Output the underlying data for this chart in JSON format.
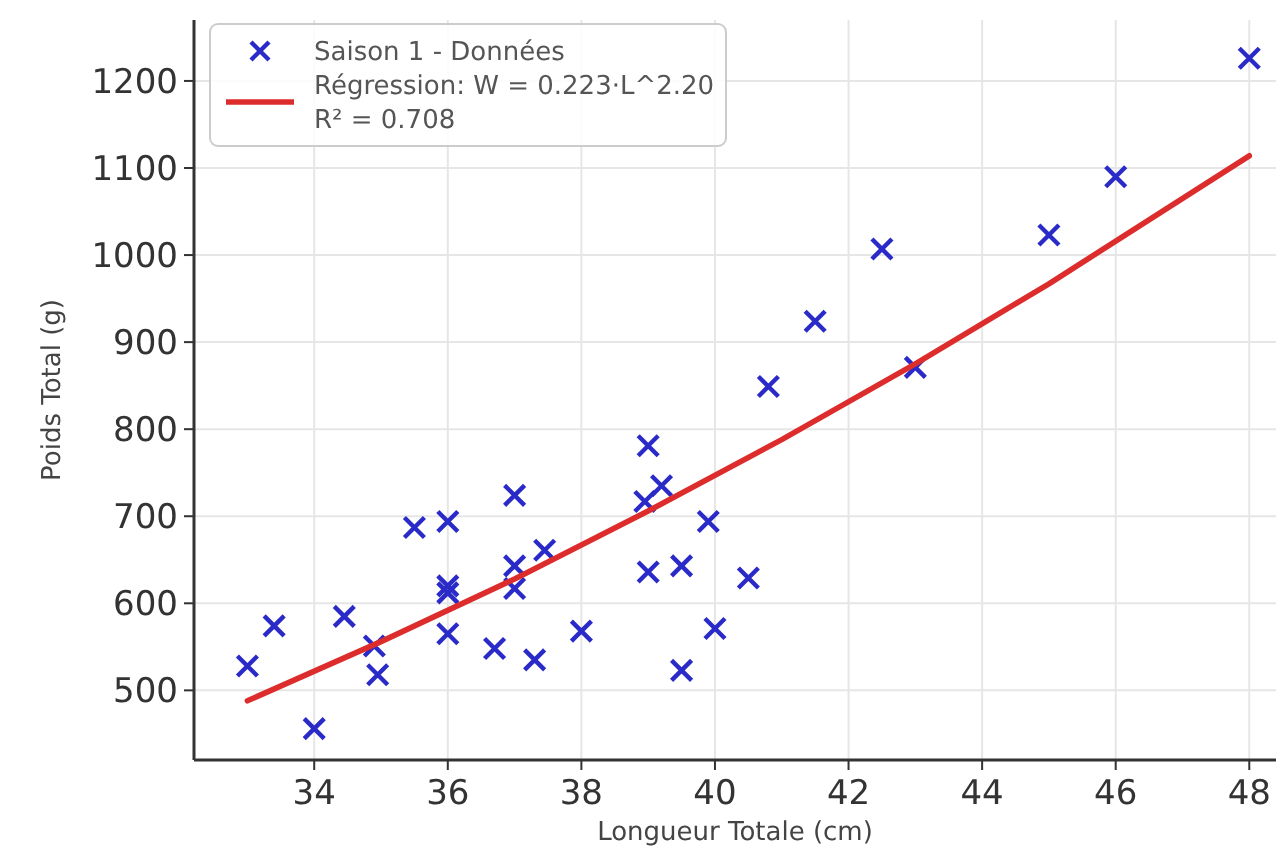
{
  "chart_data": {
    "type": "scatter",
    "xlabel": "Longueur Totale (cm)",
    "ylabel": "Poids Total (g)",
    "xlim": [
      32.2,
      48.4
    ],
    "ylim": [
      420,
      1270
    ],
    "xticks": [
      34,
      36,
      38,
      40,
      42,
      44,
      46,
      48
    ],
    "yticks": [
      500,
      600,
      700,
      800,
      900,
      1000,
      1100,
      1200
    ],
    "grid": true,
    "legend": "top left",
    "series": [
      {
        "name": "Saison 1 - Données",
        "marker": "cross",
        "color": "#2a2ac8",
        "x": [
          33.0,
          33.4,
          34.0,
          34.45,
          34.9,
          34.95,
          35.5,
          36.0,
          36.0,
          36.0,
          36.0,
          36.7,
          37.0,
          37.0,
          37.0,
          37.3,
          37.45,
          38.0,
          39.0,
          39.2,
          38.95,
          39.9,
          39.0,
          39.5,
          40.5,
          40.0,
          39.5,
          40.8,
          41.5,
          42.5,
          43.0,
          45.0,
          46.0,
          48.0
        ],
        "values": [
          528,
          574,
          456,
          585,
          551,
          518,
          687,
          694,
          620,
          612,
          565,
          548,
          724,
          643,
          617,
          535,
          661,
          568,
          781,
          735,
          717,
          694,
          636,
          643,
          629,
          571,
          523,
          849,
          924,
          1007,
          871,
          1023,
          1090,
          1226
        ]
      },
      {
        "name": "Régression: W = 0.223·L^2.20\nR² = 0.708",
        "type": "line",
        "marker": "none",
        "line_style": "solid",
        "color": "#dd2c2c",
        "x": [
          33,
          35,
          37,
          39,
          41,
          43,
          45,
          48
        ],
        "values": [
          488,
          556,
          628,
          706,
          788,
          875,
          967,
          1114
        ]
      }
    ]
  }
}
